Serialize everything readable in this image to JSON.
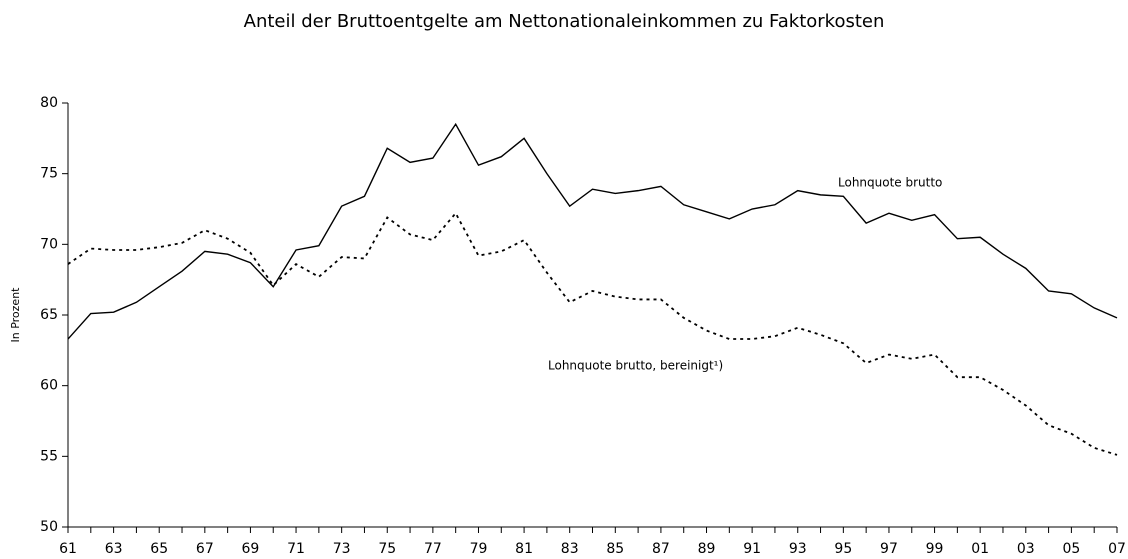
{
  "chart_data": {
    "type": "line",
    "title": "Anteil der Bruttoentgelte am Nettonationaleinkommen zu Faktorkosten",
    "y_label": "In Prozent",
    "categories": [
      "61",
      null,
      "63",
      null,
      "65",
      null,
      "67",
      null,
      "69",
      null,
      "71",
      null,
      "73",
      null,
      "75",
      null,
      "77",
      null,
      "79",
      null,
      "81",
      null,
      "83",
      null,
      "85",
      null,
      "87",
      null,
      "89",
      null,
      "91",
      null,
      "93",
      null,
      "95",
      null,
      "97",
      null,
      "99",
      null,
      "01",
      null,
      "03",
      null,
      "05",
      null,
      "07"
    ],
    "series": [
      {
        "name": "Lohnquote brutto",
        "color": "#000000",
        "style": "solid",
        "values": [
          63.3,
          65.1,
          65.2,
          65.9,
          67.0,
          68.1,
          69.5,
          69.3,
          68.7,
          67.0,
          69.6,
          69.9,
          72.7,
          73.4,
          76.8,
          75.8,
          76.1,
          78.5,
          75.6,
          76.2,
          77.5,
          75.0,
          72.7,
          73.9,
          73.6,
          73.8,
          74.1,
          72.8,
          72.3,
          71.8,
          72.5,
          72.8,
          73.8,
          73.5,
          73.4,
          71.5,
          72.2,
          71.7,
          72.1,
          70.4,
          70.5,
          69.3,
          68.3,
          66.7,
          66.5,
          65.5,
          64.8
        ]
      },
      {
        "name": "Lohnquote brutto, bereinigt¹)",
        "color": "#000000",
        "style": "dotted",
        "values": [
          68.6,
          69.7,
          69.6,
          69.6,
          69.8,
          70.1,
          71.0,
          70.4,
          69.4,
          67.1,
          68.6,
          67.7,
          69.1,
          69.0,
          71.9,
          70.7,
          70.3,
          72.2,
          69.2,
          69.5,
          70.3,
          68.0,
          65.9,
          66.7,
          66.3,
          66.1,
          66.1,
          64.8,
          63.9,
          63.3,
          63.3,
          63.5,
          64.1,
          63.6,
          63.0,
          61.6,
          62.2,
          61.9,
          62.2,
          60.6,
          60.6,
          59.7,
          58.6,
          57.2,
          56.6,
          55.6,
          55.1
        ]
      }
    ],
    "ylim": [
      50,
      80
    ],
    "yticks": [
      50,
      55,
      60,
      65,
      70,
      75,
      80
    ],
    "grid": false
  }
}
